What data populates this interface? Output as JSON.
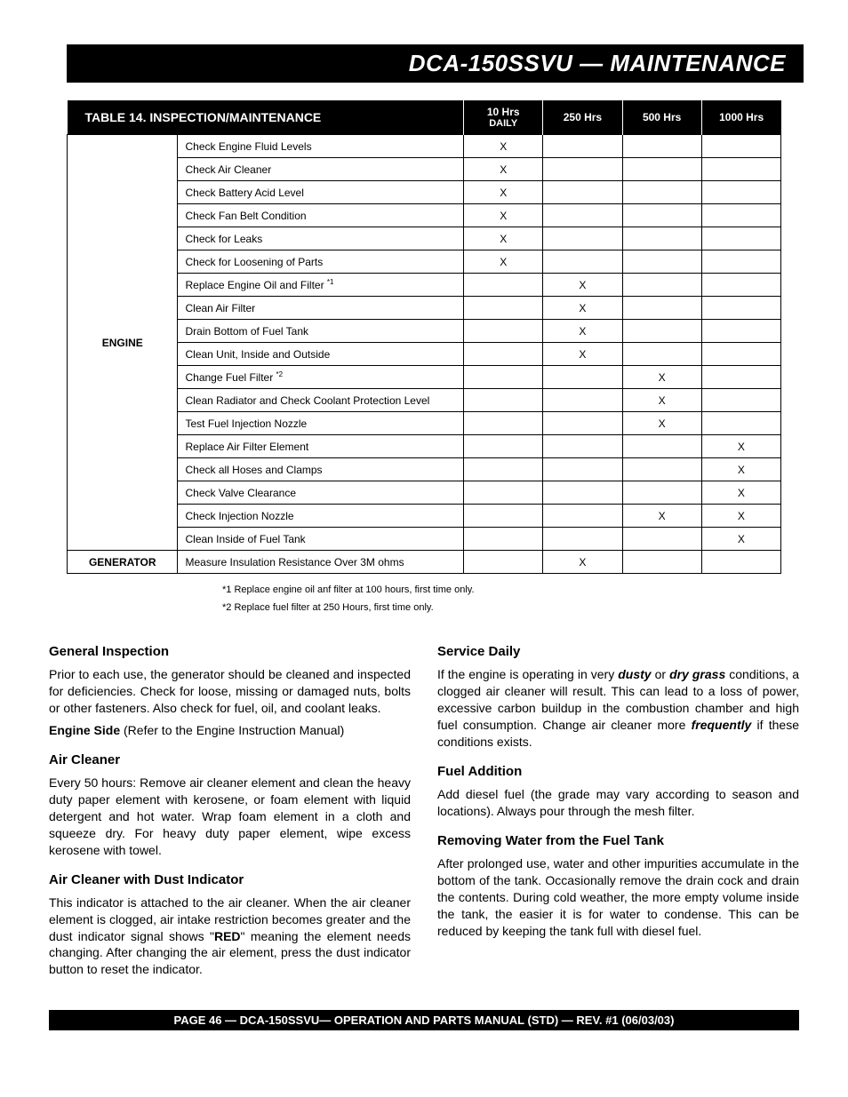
{
  "header": {
    "title": "DCA-150SSVU — MAINTENANCE"
  },
  "table": {
    "title": "TABLE 14. INSPECTION/MAINTENANCE",
    "columns": {
      "c1_a": "10 Hrs",
      "c1_b": "DAILY",
      "c2": "250 Hrs",
      "c3": "500 Hrs",
      "c4": "1000 Hrs"
    },
    "categories": [
      {
        "name": "ENGINE",
        "rows": [
          {
            "task": "Check Engine Fluid Levels",
            "sup": "",
            "m": [
              "X",
              "",
              "",
              ""
            ]
          },
          {
            "task": "Check Air Cleaner",
            "sup": "",
            "m": [
              "X",
              "",
              "",
              ""
            ]
          },
          {
            "task": "Check Battery Acid Level",
            "sup": "",
            "m": [
              "X",
              "",
              "",
              ""
            ]
          },
          {
            "task": "Check Fan Belt Condition",
            "sup": "",
            "m": [
              "X",
              "",
              "",
              ""
            ]
          },
          {
            "task": "Check for Leaks",
            "sup": "",
            "m": [
              "X",
              "",
              "",
              ""
            ]
          },
          {
            "task": "Check for Loosening of Parts",
            "sup": "",
            "m": [
              "X",
              "",
              "",
              ""
            ]
          },
          {
            "task": "Replace Engine Oil and Filter ",
            "sup": "*1",
            "m": [
              "",
              "X",
              "",
              ""
            ]
          },
          {
            "task": "Clean Air Filter",
            "sup": "",
            "m": [
              "",
              "X",
              "",
              ""
            ]
          },
          {
            "task": "Drain Bottom of Fuel Tank",
            "sup": "",
            "m": [
              "",
              "X",
              "",
              ""
            ]
          },
          {
            "task": "Clean Unit, Inside and Outside",
            "sup": "",
            "m": [
              "",
              "X",
              "",
              ""
            ]
          },
          {
            "task": "Change Fuel Filter ",
            "sup": "*2",
            "m": [
              "",
              "",
              "X",
              ""
            ]
          },
          {
            "task": "Clean Radiator and Check Coolant Protection Level",
            "sup": "",
            "m": [
              "",
              "",
              "X",
              ""
            ]
          },
          {
            "task": "Test Fuel Injection Nozzle",
            "sup": "",
            "m": [
              "",
              "",
              "X",
              ""
            ]
          },
          {
            "task": "Replace Air Filter Element",
            "sup": "",
            "m": [
              "",
              "",
              "",
              "X"
            ]
          },
          {
            "task": "Check all Hoses and Clamps",
            "sup": "",
            "m": [
              "",
              "",
              "",
              "X"
            ]
          },
          {
            "task": "Check Valve Clearance",
            "sup": "",
            "m": [
              "",
              "",
              "",
              "X"
            ]
          },
          {
            "task": "Check Injection Nozzle",
            "sup": "",
            "m": [
              "",
              "",
              "X",
              "X"
            ]
          },
          {
            "task": "Clean Inside of Fuel Tank",
            "sup": "",
            "m": [
              "",
              "",
              "",
              "X"
            ]
          }
        ]
      },
      {
        "name": "GENERATOR",
        "rows": [
          {
            "task": "Measure Insulation Resistance Over 3M ohms",
            "sup": "",
            "m": [
              "",
              "X",
              "",
              ""
            ]
          }
        ]
      }
    ]
  },
  "footnotes": {
    "f1": "*1  Replace engine oil anf filter at 100 hours, first time only.",
    "f2": "*2  Replace fuel filter at 250 Hours, first time only."
  },
  "left": {
    "h1": "General Inspection",
    "p1": "Prior to each use, the generator should be cleaned and inspected for deficiencies. Check for loose, missing or damaged nuts, bolts or other fasteners. Also check for fuel, oil, and coolant leaks.",
    "p2a": "Engine Side",
    "p2b": " (Refer to the Engine Instruction Manual)",
    "h2": "Air Cleaner",
    "p3": "Every 50 hours: Remove air cleaner element and clean the heavy duty paper element with kerosene, or foam element with liquid detergent and hot water. Wrap foam element in a cloth and squeeze dry.  For heavy duty paper element, wipe excess kerosene with towel.",
    "h3": "Air Cleaner with Dust Indicator",
    "p4a": "This indicator is attached to the air cleaner. When the air cleaner element is clogged, air intake restriction becomes greater and the dust indicator signal shows \"",
    "p4b": "RED",
    "p4c": "\" meaning the element needs changing. After changing the air element, press the dust indicator button to reset the indicator."
  },
  "right": {
    "h1": "Service Daily",
    "p1a": "If the engine is operating in very ",
    "p1b": "dusty",
    "p1c": " or ",
    "p1d": "dry grass",
    "p1e": " conditions, a clogged air cleaner will result. This can lead to a  loss of power, excessive carbon buildup in the combustion chamber  and high fuel consumption. Change air cleaner more ",
    "p1f": "frequently",
    "p1g": " if these conditions exists.",
    "h2": "Fuel Addition",
    "p2": "Add diesel fuel (the grade may vary according to season and locations). Always pour through the mesh filter.",
    "h3": "Removing Water from the Fuel Tank",
    "p3": "After prolonged use, water and other impurities accumulate in the bottom of the tank. Occasionally remove the drain cock and drain the contents. During cold weather, the more empty volume inside the tank, the easier it is for water to condense.  This can be reduced by keeping the tank full with diesel fuel."
  },
  "footer": {
    "text": "PAGE 46 — DCA-150SSVU—  OPERATION AND PARTS  MANUAL (STD) — REV. #1  (06/03/03)"
  }
}
